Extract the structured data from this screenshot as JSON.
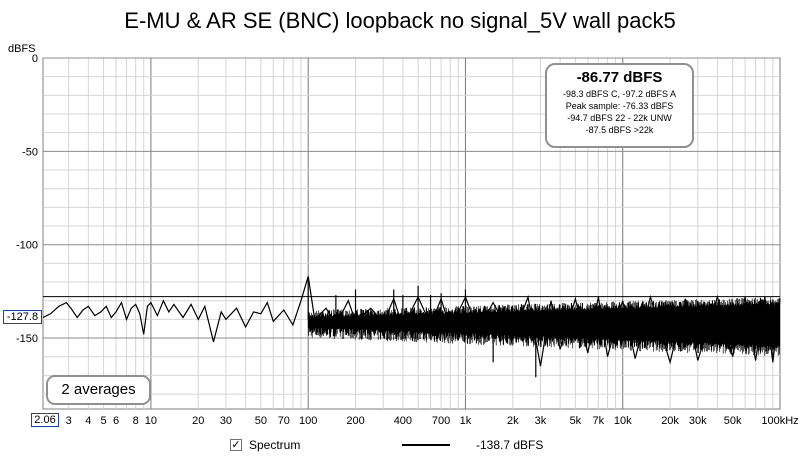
{
  "chart_data": {
    "type": "line",
    "title": "E-MU & AR SE (BNC) loopback no signal_5V wall pack5",
    "ylabel": "dBFS",
    "xlabel": "",
    "x_scale": "log",
    "xlim": [
      2.06,
      100000
    ],
    "ylim": [
      -188,
      0
    ],
    "grid": true,
    "y_ticks": [
      0,
      -50,
      -100,
      -150
    ],
    "x_ticks": [
      {
        "v": 3,
        "t": "3"
      },
      {
        "v": 4,
        "t": "4"
      },
      {
        "v": 5,
        "t": "5"
      },
      {
        "v": 6,
        "t": "6"
      },
      {
        "v": 8,
        "t": "8"
      },
      {
        "v": 10,
        "t": "10"
      },
      {
        "v": 20,
        "t": "20"
      },
      {
        "v": 30,
        "t": "30"
      },
      {
        "v": 50,
        "t": "50"
      },
      {
        "v": 70,
        "t": "70"
      },
      {
        "v": 100,
        "t": "100"
      },
      {
        "v": 200,
        "t": "200"
      },
      {
        "v": 400,
        "t": "400"
      },
      {
        "v": 700,
        "t": "700"
      },
      {
        "v": 1000,
        "t": "1k"
      },
      {
        "v": 2000,
        "t": "2k"
      },
      {
        "v": 3000,
        "t": "3k"
      },
      {
        "v": 5000,
        "t": "5k"
      },
      {
        "v": 7000,
        "t": "7k"
      },
      {
        "v": 10000,
        "t": "10k"
      },
      {
        "v": 20000,
        "t": "20k"
      },
      {
        "v": 30000,
        "t": "30k"
      },
      {
        "v": 50000,
        "t": "50k"
      },
      {
        "v": 100000,
        "t": "100kHz"
      }
    ],
    "cursor_y": -127.8,
    "series": [
      {
        "name": "Spectrum",
        "color": "#000000",
        "points": [
          [
            2.06,
            -139
          ],
          [
            2.3,
            -137
          ],
          [
            2.6,
            -133
          ],
          [
            2.9,
            -131
          ],
          [
            3.1,
            -134
          ],
          [
            3.4,
            -139
          ],
          [
            3.7,
            -135
          ],
          [
            4.0,
            -133
          ],
          [
            4.4,
            -138
          ],
          [
            4.8,
            -136
          ],
          [
            5.2,
            -133
          ],
          [
            5.6,
            -139
          ],
          [
            6.0,
            -136
          ],
          [
            6.5,
            -131
          ],
          [
            7.0,
            -140
          ],
          [
            7.5,
            -134
          ],
          [
            8.0,
            -132
          ],
          [
            8.5,
            -137
          ],
          [
            9.0,
            -148
          ],
          [
            9.5,
            -133
          ],
          [
            10,
            -131
          ],
          [
            11,
            -138
          ],
          [
            12,
            -130
          ],
          [
            13,
            -136
          ],
          [
            14,
            -132
          ],
          [
            16,
            -139
          ],
          [
            18,
            -132
          ],
          [
            20,
            -140
          ],
          [
            22,
            -133
          ],
          [
            25,
            -152
          ],
          [
            28,
            -136
          ],
          [
            30,
            -140
          ],
          [
            35,
            -134
          ],
          [
            40,
            -144
          ],
          [
            45,
            -136
          ],
          [
            50,
            -137
          ],
          [
            55,
            -131
          ],
          [
            60,
            -141
          ],
          [
            70,
            -135
          ],
          [
            80,
            -143
          ],
          [
            90,
            -130
          ],
          [
            100,
            -117
          ],
          [
            110,
            -140
          ],
          [
            130,
            -134
          ],
          [
            150,
            -143
          ],
          [
            180,
            -130
          ],
          [
            200,
            -141
          ],
          [
            250,
            -134
          ],
          [
            300,
            -142
          ],
          [
            350,
            -129
          ],
          [
            400,
            -144
          ],
          [
            500,
            -128
          ],
          [
            600,
            -143
          ],
          [
            700,
            -129
          ],
          [
            800,
            -145
          ],
          [
            1000,
            -128
          ],
          [
            1200,
            -146
          ],
          [
            1500,
            -131
          ],
          [
            2000,
            -150
          ],
          [
            2500,
            -128
          ],
          [
            3000,
            -165
          ],
          [
            3500,
            -130
          ],
          [
            4000,
            -156
          ],
          [
            5000,
            -129
          ],
          [
            6000,
            -158
          ],
          [
            7000,
            -128
          ],
          [
            8000,
            -160
          ],
          [
            10000,
            -130
          ],
          [
            12000,
            -161
          ],
          [
            15000,
            -128
          ],
          [
            20000,
            -163
          ],
          [
            25000,
            -129
          ],
          [
            30000,
            -162
          ],
          [
            40000,
            -128
          ],
          [
            50000,
            -160
          ],
          [
            60000,
            -128
          ],
          [
            70000,
            -162
          ],
          [
            80000,
            -128
          ],
          [
            90000,
            -163
          ],
          [
            100000,
            -129
          ]
        ]
      }
    ],
    "noise_band": {
      "x_start": 100,
      "x_end": 100000,
      "upper_start": -135,
      "lower_start": -150,
      "upper_end": -128,
      "lower_end": -160
    },
    "spikes": [
      {
        "x": 100,
        "y": -117
      },
      {
        "x": 150,
        "y": -127
      },
      {
        "x": 200,
        "y": -124
      },
      {
        "x": 350,
        "y": -124
      },
      {
        "x": 400,
        "y": -127
      },
      {
        "x": 500,
        "y": -122
      },
      {
        "x": 600,
        "y": -127
      },
      {
        "x": 700,
        "y": -126
      },
      {
        "x": 1000,
        "y": -124
      },
      {
        "x": 2800,
        "y": -171
      },
      {
        "x": 1500,
        "y": -163
      }
    ]
  },
  "header": {
    "title": "E-MU & AR SE (BNC) loopback no signal_5V wall pack5",
    "unit": "dBFS"
  },
  "summary": {
    "main": "-86.77 dBFS",
    "lines": [
      "-98.3 dBFS C, -97.2 dBFS A",
      "Peak sample: -76.33 dBFS",
      "-94.7 dBFS 22 - 22k UNW",
      "-87.5 dBFS >22k"
    ]
  },
  "averages_label": "2 averages",
  "x_left_readout": "2.06",
  "y_cursor_readout": "-127.8",
  "legend": {
    "checked_glyph": "✓",
    "label": "Spectrum",
    "value": "-138.7 dBFS"
  }
}
